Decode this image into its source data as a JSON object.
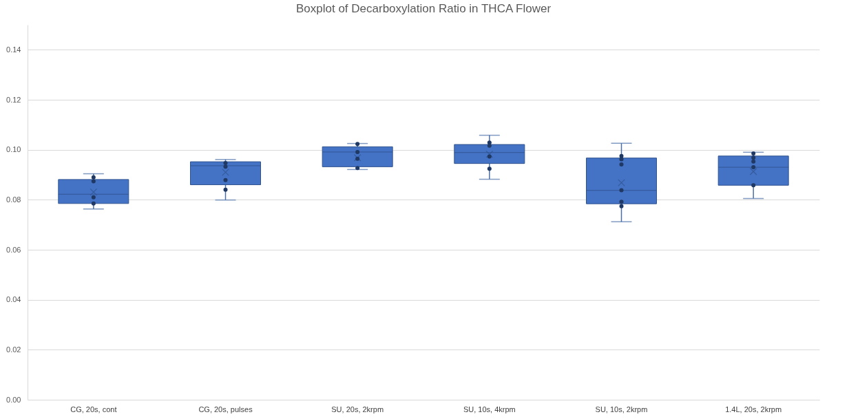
{
  "chart_data": {
    "type": "box",
    "title": "Boxplot of Decarboxylation Ratio in THCA Flower",
    "categories": [
      "CG, 20s, cont",
      "CG, 20s, pulses",
      "SU, 20s, 2krpm",
      "SU, 10s, 4krpm",
      "SU, 10s, 2krpm",
      "1.4L, 20s, 2krpm"
    ],
    "ylim": [
      0,
      0.15
    ],
    "yticks": [
      {
        "value": 0,
        "label": "0.00"
      },
      {
        "value": 0.02,
        "label": "0.02"
      },
      {
        "value": 0.04,
        "label": "0.04"
      },
      {
        "value": 0.06,
        "label": "0.06"
      },
      {
        "value": 0.08,
        "label": "0.08"
      },
      {
        "value": 0.1,
        "label": "0.10"
      },
      {
        "value": 0.12,
        "label": "0.12"
      },
      {
        "value": 0.14,
        "label": "0.14"
      }
    ],
    "grid": "y",
    "series": [
      {
        "type": "box",
        "color": "#4472c4",
        "boxes": [
          {
            "low": 0.0763,
            "q1": 0.0785,
            "median": 0.0822,
            "q3": 0.0881,
            "high": 0.0904,
            "mean": 0.0831
          },
          {
            "low": 0.0799,
            "q1": 0.086,
            "median": 0.0936,
            "q3": 0.0952,
            "high": 0.0961,
            "mean": 0.091
          },
          {
            "low": 0.0921,
            "q1": 0.0932,
            "median": 0.0991,
            "q3": 0.1012,
            "high": 0.1025,
            "mean": 0.0968
          },
          {
            "low": 0.0882,
            "q1": 0.0945,
            "median": 0.0989,
            "q3": 0.1021,
            "high": 0.1058,
            "mean": 0.0982
          },
          {
            "low": 0.0712,
            "q1": 0.0784,
            "median": 0.0838,
            "q3": 0.0967,
            "high": 0.1026,
            "mean": 0.0868
          },
          {
            "low": 0.0805,
            "q1": 0.0858,
            "median": 0.093,
            "q3": 0.0975,
            "high": 0.099,
            "mean": 0.0913
          }
        ]
      },
      {
        "type": "scatter",
        "color": "#1f3864",
        "marker": "circle",
        "x": [
          "CG, 20s, cont",
          "CG, 20s, cont",
          "CG, 20s, cont",
          "CG, 20s, cont",
          "CG, 20s, pulses",
          "CG, 20s, pulses",
          "CG, 20s, pulses",
          "CG, 20s, pulses",
          "SU, 20s, 2krpm",
          "SU, 20s, 2krpm",
          "SU, 20s, 2krpm",
          "SU, 20s, 2krpm",
          "SU, 10s, 4krpm",
          "SU, 10s, 4krpm",
          "SU, 10s, 4krpm",
          "SU, 10s, 4krpm",
          "SU, 10s, 2krpm",
          "SU, 10s, 2krpm",
          "SU, 10s, 2krpm",
          "SU, 10s, 2krpm",
          "SU, 10s, 2krpm",
          "SU, 10s, 2krpm",
          "1.4L, 20s, 2krpm",
          "1.4L, 20s, 2krpm",
          "1.4L, 20s, 2krpm",
          "1.4L, 20s, 2krpm",
          "1.4L, 20s, 2krpm"
        ],
        "values": [
          0.089,
          0.0874,
          0.081,
          0.0785,
          0.0947,
          0.0932,
          0.0879,
          0.084,
          0.1023,
          0.0991,
          0.0964,
          0.0927,
          0.1029,
          0.1016,
          0.0973,
          0.0924,
          0.0975,
          0.0962,
          0.0941,
          0.0838,
          0.0792,
          0.0774,
          0.0985,
          0.0968,
          0.0953,
          0.093,
          0.0858
        ]
      }
    ]
  }
}
